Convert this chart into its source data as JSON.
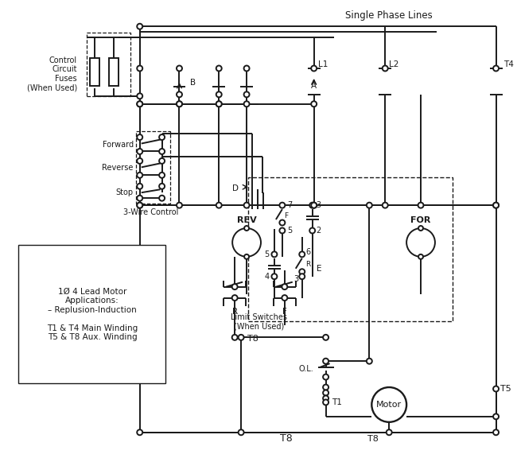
{
  "bg_color": "#ffffff",
  "line_color": "#1a1a1a",
  "lw": 1.4,
  "figsize": [
    6.5,
    5.76
  ],
  "dpi": 100,
  "labels": {
    "single_phase_lines": "Single Phase Lines",
    "ccf": "Control\nCircuit\nFuses\n(When Used)",
    "forward": "Forward",
    "reverse": "Reverse",
    "stop": "Stop",
    "three_wire": "3-Wire Control",
    "rev": "REV",
    "for_lbl": "FOR",
    "motor": "Motor",
    "limit_sw": "Limit Switches\n(When Used)",
    "t8b": "T8",
    "t8m": "T8",
    "t1": "T1",
    "t4": "T4",
    "t5": "T5",
    "l1": "L1",
    "l2": "L2",
    "a": "A",
    "b": "B",
    "d": "D",
    "ol": "O.L.",
    "r_sw": "R",
    "f_sw": "F",
    "num2": "2",
    "num3": "3",
    "num4": "4",
    "num5": "5",
    "num6": "6",
    "num7": "7",
    "lbl_r": "R",
    "lbl_e": "E",
    "lbl_f": "F",
    "box_text": "1Ø 4 Lead Motor\nApplications:\n– Replusion-Induction\n\nT1 & T4 Main Winding\nT5 & T8 Aux. Winding"
  }
}
